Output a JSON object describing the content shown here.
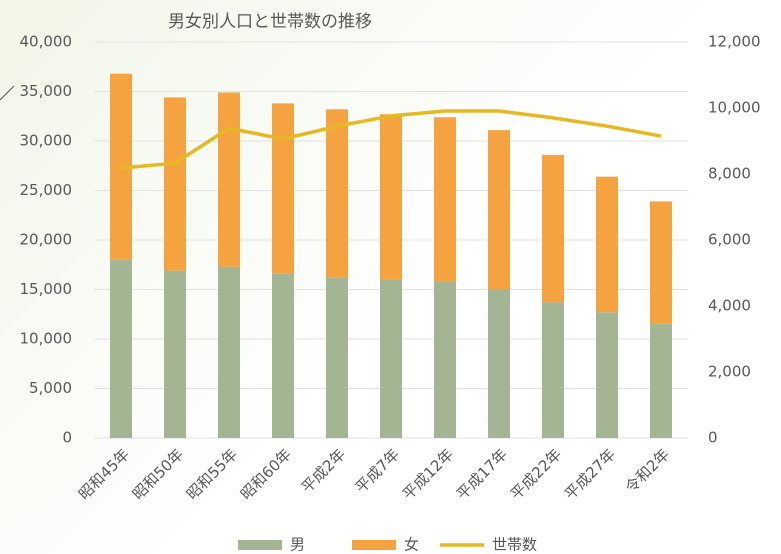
{
  "chart_data": {
    "type": "bar",
    "title": "男女別人口と世帯数の推移",
    "categories": [
      "昭和45年",
      "昭和50年",
      "昭和55年",
      "昭和60年",
      "平成2年",
      "平成7年",
      "平成12年",
      "平成17年",
      "平成22年",
      "平成27年",
      "令和2年"
    ],
    "series": [
      {
        "name": "男",
        "color": "#a4b593",
        "type": "bar",
        "values": [
          18000,
          16900,
          17300,
          16600,
          16200,
          16000,
          15800,
          15000,
          13700,
          12700,
          11600
        ]
      },
      {
        "name": "女",
        "color": "#f4a340",
        "type": "bar",
        "values": [
          18800,
          17500,
          17600,
          17200,
          17000,
          16700,
          16600,
          16100,
          14900,
          13700,
          12300
        ]
      },
      {
        "name": "世帯数",
        "color": "#e6b822",
        "type": "line",
        "axis": "y2",
        "values": [
          8180,
          8330,
          9390,
          9060,
          9450,
          9760,
          9910,
          9910,
          9700,
          9450,
          9150
        ]
      }
    ],
    "ylim": [
      0,
      40000
    ],
    "yticks": [
      0,
      {
        "value": 5000,
        "label": "5,000"
      },
      {
        "value": 10000,
        "label": "10,000"
      },
      {
        "value": 15000,
        "label": "15,000"
      },
      {
        "value": 20000,
        "label": "20,000"
      },
      {
        "value": 25000,
        "label": "25,000"
      },
      {
        "value": 30000,
        "label": "30,000"
      },
      {
        "value": 35000,
        "label": "35,000"
      },
      {
        "value": 40000,
        "label": "40,000"
      }
    ],
    "y2lim": [
      0,
      12000
    ],
    "y2ticks": [
      0,
      {
        "value": 2000,
        "label": "2,000"
      },
      {
        "value": 4000,
        "label": "4,000"
      },
      {
        "value": 6000,
        "label": "6,000"
      },
      {
        "value": 8000,
        "label": "8,000"
      },
      {
        "value": 10000,
        "label": "10,000"
      },
      {
        "value": 12000,
        "label": "12,000"
      }
    ],
    "grid": true,
    "legend": "bottom"
  }
}
